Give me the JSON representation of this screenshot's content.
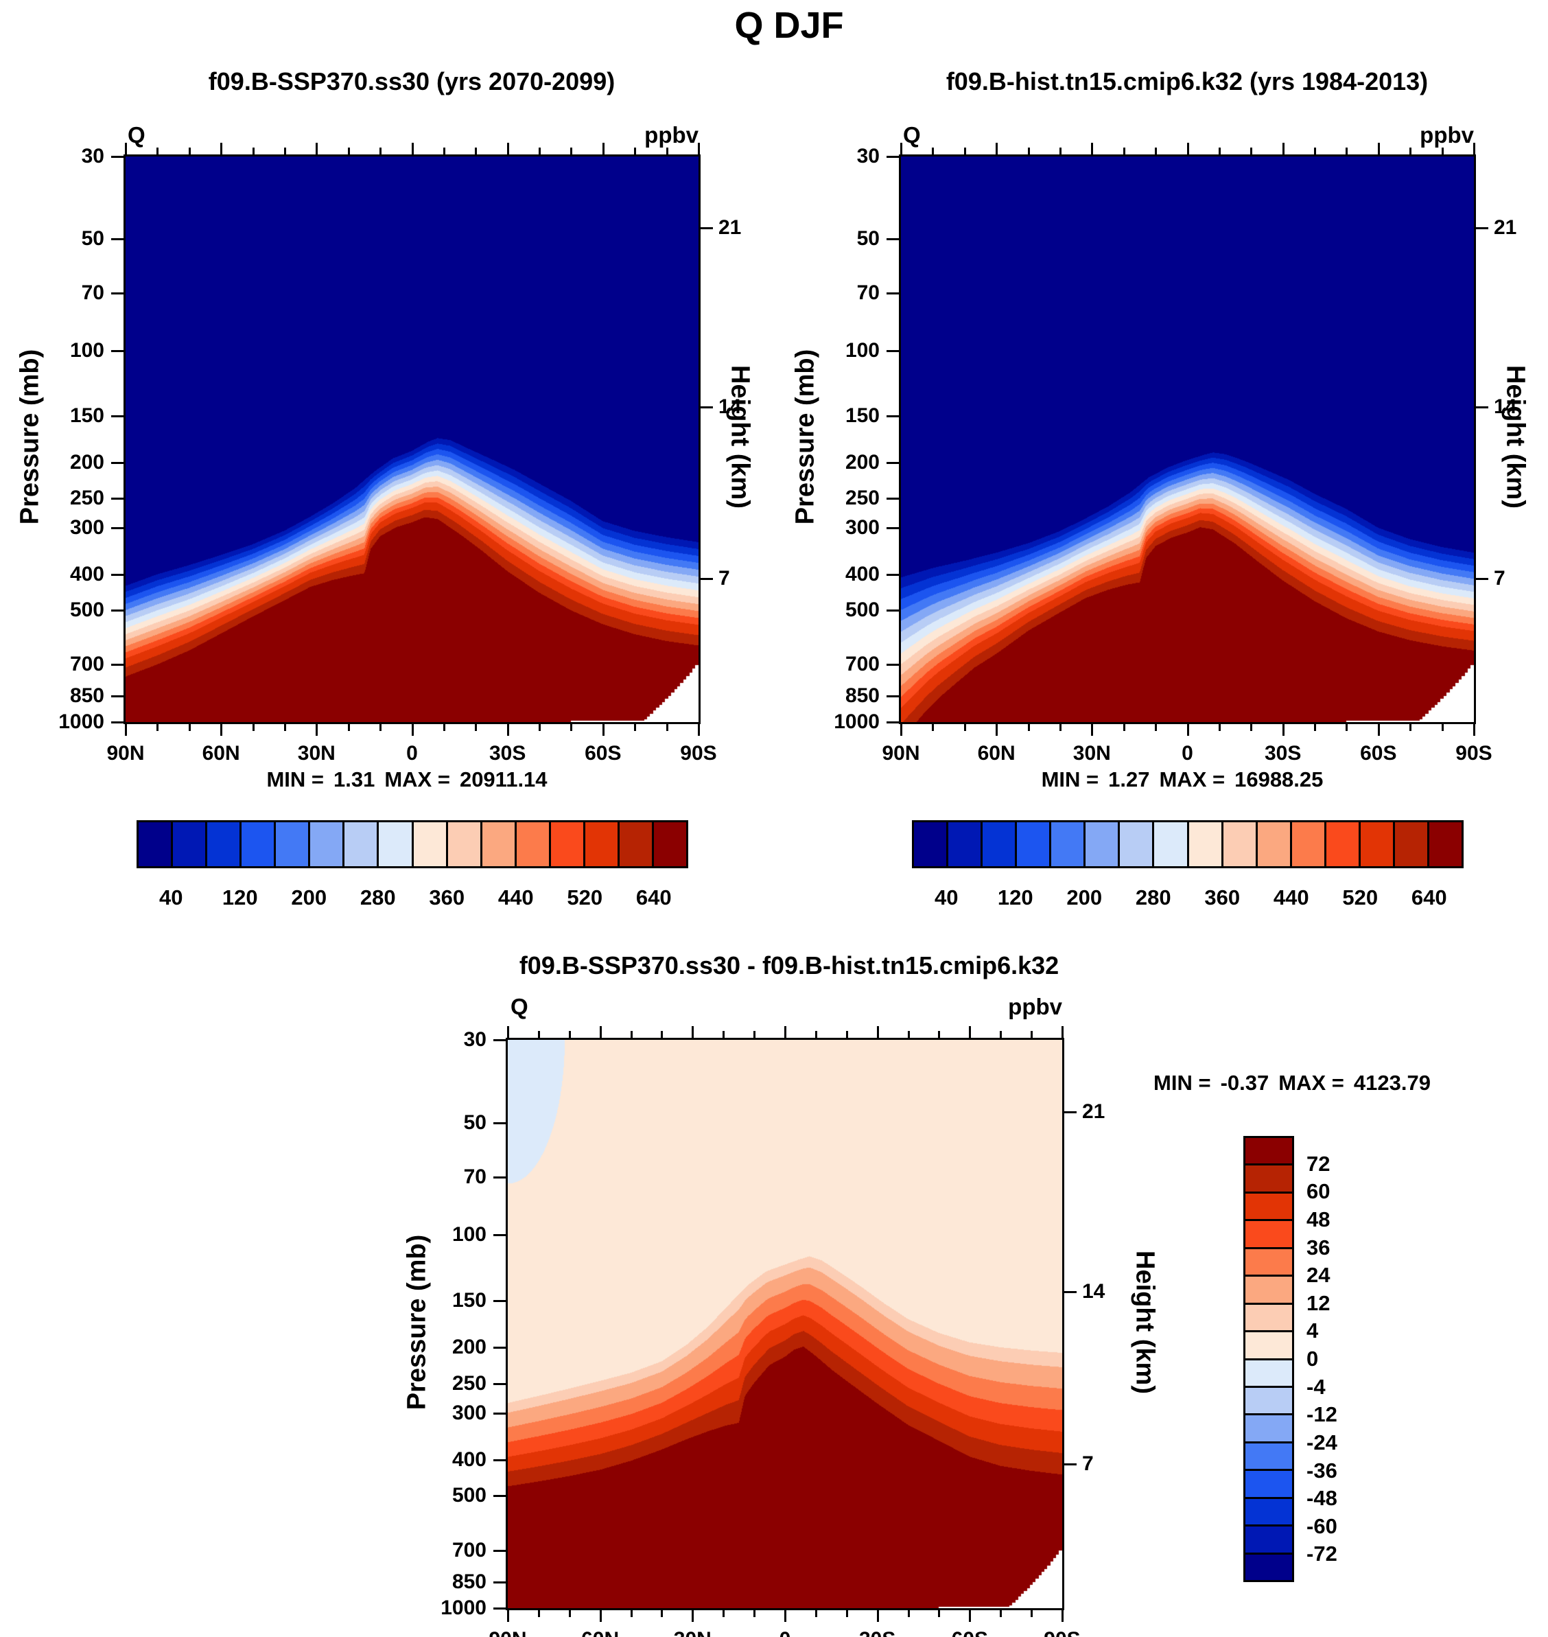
{
  "figure": {
    "title": "Q DJF"
  },
  "panels": {
    "left": {
      "title": "f09.B-SSP370.ss30 (yrs 2070-2099)",
      "corner_label": "Q",
      "units": "ppbv",
      "min_label": "MIN =",
      "min_value": "1.31",
      "max_label": "MAX =",
      "max_value": "20911.14",
      "y_axis_title": "Pressure (mb)",
      "y2_axis_title": "Height (km)"
    },
    "right": {
      "title": "f09.B-hist.tn15.cmip6.k32 (yrs 1984-2013)",
      "corner_label": "Q",
      "units": "ppbv",
      "min_label": "MIN =",
      "min_value": "1.27",
      "max_label": "MAX =",
      "max_value": "16988.25",
      "y_axis_title": "Pressure (mb)",
      "y2_axis_title": "Height (km)"
    },
    "diff": {
      "title": "f09.B-SSP370.ss30 - f09.B-hist.tn15.cmip6.k32",
      "corner_label": "Q",
      "units": "ppbv",
      "min_label": "MIN =",
      "min_value": "-0.37",
      "max_label": "MAX =",
      "max_value": "4123.79",
      "y_axis_title": "Pressure (mb)",
      "y2_axis_title": "Height (km)"
    }
  },
  "axes": {
    "pressure_ticks": [
      30,
      50,
      70,
      100,
      150,
      200,
      250,
      300,
      400,
      500,
      700,
      850,
      1000
    ],
    "pressure_range": [
      30,
      1000
    ],
    "lat_major": [
      {
        "lat": 90,
        "label": "90N"
      },
      {
        "lat": 60,
        "label": "60N"
      },
      {
        "lat": 30,
        "label": "30N"
      },
      {
        "lat": 0,
        "label": "0"
      },
      {
        "lat": -30,
        "label": "30S"
      },
      {
        "lat": -60,
        "label": "60S"
      },
      {
        "lat": -90,
        "label": "90S"
      }
    ],
    "lat_minor_step": 10,
    "height_ticks": [
      {
        "label": "21",
        "p": 46.8
      },
      {
        "label": "14",
        "p": 141.7
      },
      {
        "label": "7",
        "p": 411
      }
    ]
  },
  "chart_data": {
    "type": "filled-contour",
    "x_axis": "latitude, 90N to 90S",
    "y_axis": "pressure (mb), log scale 30 to 1000",
    "units": "ppbv",
    "grid": false,
    "palette": [
      "#00008B",
      "#0018B4",
      "#0433D4",
      "#1C55F0",
      "#4379F5",
      "#84A8F5",
      "#B8CDF5",
      "#DCEAFA",
      "#FDE8D7",
      "#FCCDB4",
      "#FBA880",
      "#FC7B4B",
      "#FA4A1C",
      "#E23405",
      "#B62303",
      "#8B0000"
    ],
    "terrain_color": "#FFFFFF",
    "colorbar_labeled_values_top": [
      40,
      120,
      200,
      280,
      360,
      440,
      520,
      640
    ],
    "colorbar_labeled_values_diff": [
      72,
      60,
      48,
      36,
      24,
      12,
      4,
      0,
      -4,
      -12,
      -24,
      -36,
      -48,
      -60,
      -72
    ],
    "panels": [
      {
        "id": "ssp370",
        "title": "f09.B-SSP370.ss30 (yrs 2070-2099)",
        "min": 1.31,
        "max": 20911.14,
        "mode": "absolute",
        "levels": [
          40,
          80,
          120,
          160,
          200,
          240,
          280,
          320,
          360,
          400,
          440,
          480,
          520,
          580,
          640
        ],
        "value_at_curveA": 40,
        "value_at_curveB": 680,
        "curveA_level40_lat_p": [
          [
            90,
            430
          ],
          [
            80,
            400
          ],
          [
            70,
            378
          ],
          [
            60,
            355
          ],
          [
            50,
            332
          ],
          [
            40,
            305
          ],
          [
            32,
            280
          ],
          [
            25,
            258
          ],
          [
            18,
            235
          ],
          [
            12,
            212
          ],
          [
            6,
            195
          ],
          [
            0,
            186
          ],
          [
            -5,
            176
          ],
          [
            -8,
            172
          ],
          [
            -12,
            174
          ],
          [
            -18,
            184
          ],
          [
            -25,
            196
          ],
          [
            -32,
            209
          ],
          [
            -40,
            228
          ],
          [
            -50,
            254
          ],
          [
            -60,
            288
          ],
          [
            -70,
            306
          ],
          [
            -80,
            318
          ],
          [
            -90,
            328
          ]
        ],
        "curveB_level680_lat_p": [
          [
            90,
            755
          ],
          [
            80,
            700
          ],
          [
            70,
            642
          ],
          [
            60,
            578
          ],
          [
            50,
            520
          ],
          [
            40,
            470
          ],
          [
            32,
            433
          ],
          [
            25,
            415
          ],
          [
            19,
            404
          ],
          [
            15,
            398
          ],
          [
            13,
            342
          ],
          [
            10,
            316
          ],
          [
            5,
            299
          ],
          [
            0,
            290
          ],
          [
            -4,
            281
          ],
          [
            -8,
            284
          ],
          [
            -15,
            312
          ],
          [
            -22,
            346
          ],
          [
            -30,
            393
          ],
          [
            -40,
            449
          ],
          [
            -50,
            501
          ],
          [
            -60,
            546
          ],
          [
            -70,
            581
          ],
          [
            -80,
            606
          ],
          [
            -90,
            623
          ]
        ],
        "terrain_antarctica": true
      },
      {
        "id": "hist",
        "title": "f09.B-hist.tn15.cmip6.k32 (yrs 1984-2013)",
        "min": 1.27,
        "max": 16988.25,
        "mode": "absolute",
        "levels": [
          40,
          80,
          120,
          160,
          200,
          240,
          280,
          320,
          360,
          400,
          440,
          480,
          520,
          580,
          640
        ],
        "value_at_curveA": 40,
        "value_at_curveB": 680,
        "curveA_level40_lat_p": [
          [
            90,
            408
          ],
          [
            80,
            385
          ],
          [
            70,
            368
          ],
          [
            60,
            350
          ],
          [
            50,
            330
          ],
          [
            40,
            306
          ],
          [
            32,
            283
          ],
          [
            25,
            263
          ],
          [
            18,
            241
          ],
          [
            12,
            219
          ],
          [
            6,
            206
          ],
          [
            0,
            197
          ],
          [
            -5,
            191
          ],
          [
            -8,
            188
          ],
          [
            -12,
            190
          ],
          [
            -18,
            198
          ],
          [
            -25,
            210
          ],
          [
            -32,
            223
          ],
          [
            -40,
            243
          ],
          [
            -50,
            267
          ],
          [
            -60,
            300
          ],
          [
            -70,
            322
          ],
          [
            -80,
            338
          ],
          [
            -90,
            350
          ]
        ],
        "curveB_level680_lat_p": [
          [
            90,
            1120
          ],
          [
            86,
            1020
          ],
          [
            82,
            930
          ],
          [
            78,
            860
          ],
          [
            73,
            790
          ],
          [
            67,
            715
          ],
          [
            60,
            655
          ],
          [
            50,
            568
          ],
          [
            40,
            507
          ],
          [
            32,
            464
          ],
          [
            25,
            441
          ],
          [
            19,
            427
          ],
          [
            15,
            421
          ],
          [
            13,
            362
          ],
          [
            10,
            336
          ],
          [
            5,
            319
          ],
          [
            0,
            309
          ],
          [
            -4,
            299
          ],
          [
            -8,
            303
          ],
          [
            -15,
            331
          ],
          [
            -22,
            369
          ],
          [
            -30,
            416
          ],
          [
            -40,
            473
          ],
          [
            -50,
            526
          ],
          [
            -60,
            571
          ],
          [
            -70,
            603
          ],
          [
            -80,
            626
          ],
          [
            -90,
            643
          ]
        ],
        "terrain_antarctica": true
      },
      {
        "id": "difference",
        "title": "f09.B-SSP370.ss30 - f09.B-hist.tn15.cmip6.k32",
        "min": -0.37,
        "max": 4123.79,
        "mode": "diff",
        "levels": [
          -72,
          -60,
          -48,
          -36,
          -24,
          -12,
          -4,
          0,
          4,
          12,
          24,
          36,
          48,
          60,
          72
        ],
        "value_at_curveA": 4,
        "value_at_curveB": 72,
        "curveA_level4_lat_p": [
          [
            90,
            282
          ],
          [
            80,
            270
          ],
          [
            70,
            258
          ],
          [
            60,
            246
          ],
          [
            50,
            234
          ],
          [
            40,
            218
          ],
          [
            32,
            197
          ],
          [
            25,
            176
          ],
          [
            18,
            153
          ],
          [
            12,
            136
          ],
          [
            6,
            125
          ],
          [
            0,
            120
          ],
          [
            -5,
            116
          ],
          [
            -8,
            114
          ],
          [
            -12,
            117
          ],
          [
            -18,
            126
          ],
          [
            -25,
            138
          ],
          [
            -32,
            152
          ],
          [
            -40,
            168
          ],
          [
            -50,
            183
          ],
          [
            -60,
            194
          ],
          [
            -70,
            200
          ],
          [
            -80,
            204
          ],
          [
            -90,
            207
          ]
        ],
        "curveB_level72_lat_p": [
          [
            90,
            472
          ],
          [
            80,
            458
          ],
          [
            70,
            443
          ],
          [
            60,
            426
          ],
          [
            50,
            403
          ],
          [
            40,
            376
          ],
          [
            32,
            353
          ],
          [
            25,
            336
          ],
          [
            19,
            324
          ],
          [
            15,
            319
          ],
          [
            13,
            270
          ],
          [
            10,
            249
          ],
          [
            5,
            223
          ],
          [
            0,
            212
          ],
          [
            -3,
            203
          ],
          [
            -6,
            199
          ],
          [
            -10,
            211
          ],
          [
            -15,
            229
          ],
          [
            -22,
            253
          ],
          [
            -30,
            283
          ],
          [
            -40,
            323
          ],
          [
            -50,
            356
          ],
          [
            -60,
            393
          ],
          [
            -70,
            416
          ],
          [
            -80,
            429
          ],
          [
            -90,
            439
          ]
        ],
        "negative_patch": {
          "amplitude": 3.2,
          "lat_center": 90,
          "lat_width_deg": 13.5,
          "lnp_center": 3.4012,
          "lnp_width": 0.65
        },
        "terrain_antarctica": true
      }
    ]
  }
}
